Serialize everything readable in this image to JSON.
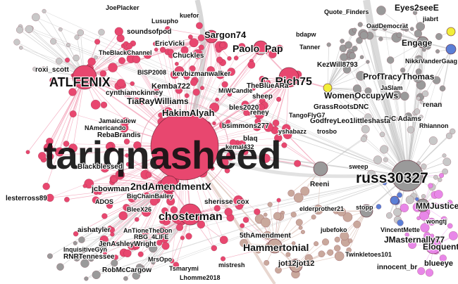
{
  "colors": {
    "pink": "#e8476f",
    "pink_light": "#f07b98",
    "gray": "#9a9a9a",
    "gray_light": "#c8c8c8",
    "tan": "#c9a89c",
    "blue": "#5b7fd6",
    "yellow": "#f2ee3a",
    "magenta": "#e887e8",
    "edge_pink": "#f29ab2",
    "edge_gray": "#c4c4c4",
    "edge_tan": "#d9bcb0",
    "edge_magenta": "#efb0ef"
  },
  "labels": [
    {
      "id": "tariqnasheed",
      "text": "tariqnasheed"
    },
    {
      "id": "russ30327",
      "text": "russ30327"
    },
    {
      "id": "atlfenix",
      "text": "ATLFENIX"
    },
    {
      "id": "crich75",
      "text": "C_Rich75"
    },
    {
      "id": "2ndamendment",
      "text": "2ndAmendmentX"
    },
    {
      "id": "paolo",
      "text": "Paolo_Pap"
    },
    {
      "id": "sargon",
      "text": "Sargon74"
    },
    {
      "id": "kemba",
      "text": "Kemba722"
    },
    {
      "id": "tiaray",
      "text": "TiaRayWilliams"
    },
    {
      "id": "hakim",
      "text": "HakimAlyah"
    },
    {
      "id": "bsimmons",
      "text": "bsimmons277"
    },
    {
      "id": "choster",
      "text": "chosterman"
    },
    {
      "id": "hammer",
      "text": "Hammertonial"
    },
    {
      "id": "jot12",
      "text": "jot12jot12"
    },
    {
      "id": "lesterross",
      "text": "lesterross89"
    },
    {
      "id": "jcbowman",
      "text": "jcbowman"
    },
    {
      "id": "sherisse",
      "text": "sherisse_cox"
    },
    {
      "id": "justice",
      "text": "MMJustice"
    },
    {
      "id": "loquent",
      "text": "Eloquent"
    },
    {
      "id": "blueeye",
      "text": "blueeye"
    },
    {
      "id": "womenocc",
      "text": "WomenOccupyWs"
    },
    {
      "id": "jmasternally",
      "text": "JMasternally77"
    },
    {
      "id": "eyes2see",
      "text": "Eyes2seeE"
    },
    {
      "id": "protracy",
      "text": "ProfTracyThomas"
    },
    {
      "id": "kevbiz",
      "text": "kevbizmanwalker"
    },
    {
      "id": "joeplacker",
      "text": "JoePlacker"
    },
    {
      "id": "soundsofpod",
      "text": "soundsofpod"
    },
    {
      "id": "blackchannel",
      "text": "TheBlackChannel"
    },
    {
      "id": "roxi",
      "text": "roxi_scott"
    },
    {
      "id": "ericvicki",
      "text": "EricVicki"
    },
    {
      "id": "chuckles",
      "text": "Chuckles"
    },
    {
      "id": "renan",
      "text": "renan"
    },
    {
      "id": "kezwill",
      "text": "KezWill8793"
    },
    {
      "id": "quotefinders",
      "text": "Quote_Finders"
    },
    {
      "id": "oad",
      "text": "OadDemocrat"
    },
    {
      "id": "engage",
      "text": "Engage"
    },
    {
      "id": "nikkivander",
      "text": "NikkiVanderGaag"
    },
    {
      "id": "jiaslam",
      "text": "JaSlam"
    },
    {
      "id": "cicadams",
      "text": "CiC Adams"
    },
    {
      "id": "rhiannon",
      "text": "Rhiannon"
    },
    {
      "id": "grassroots",
      "text": "GrassRootsDNC"
    },
    {
      "id": "godfrey",
      "text": "GodfreyLeo1littleshasta"
    },
    {
      "id": "yshabazz",
      "text": "yshabazz"
    },
    {
      "id": "trosbo",
      "text": "trosbo"
    },
    {
      "id": "kemal",
      "text": "kemal432"
    },
    {
      "id": "reeni",
      "text": "Reeni"
    },
    {
      "id": "jamaicadew",
      "text": "Jamaicadew"
    },
    {
      "id": "rebabrandis",
      "text": "RebaBrandis"
    },
    {
      "id": "namericando",
      "text": "NAmericando"
    },
    {
      "id": "blackblessed",
      "text": "Blackblessed"
    },
    {
      "id": "cynthia",
      "text": "cynthiamckinney"
    },
    {
      "id": "ados",
      "text": "ADOS"
    },
    {
      "id": "bigchain",
      "text": "BigChainBailey"
    },
    {
      "id": "aishatyler",
      "text": "aishatyler"
    },
    {
      "id": "jenashley",
      "text": "JenAshleyWright"
    },
    {
      "id": "rnrtenn",
      "text": "RNRTennessee"
    },
    {
      "id": "robmc",
      "text": "RobMcCargow"
    },
    {
      "id": "mistresh",
      "text": "mistresh"
    },
    {
      "id": "5thamend",
      "text": "5thAmendment"
    },
    {
      "id": "elderprother",
      "text": "elderprother21"
    },
    {
      "id": "jubefoko",
      "text": "jubefoko"
    },
    {
      "id": "vincentm",
      "text": "VincentMette"
    },
    {
      "id": "twinkle",
      "text": "Twinkletoes101"
    },
    {
      "id": "wongtj",
      "text": "wongtj"
    },
    {
      "id": "innocent",
      "text": "innocent_br"
    },
    {
      "id": "lhomme",
      "text": "Lhomme2018"
    },
    {
      "id": "tsmarymi",
      "text": "Tsmarymi"
    },
    {
      "id": "inquisitive",
      "text": "InquisitiveGyn"
    },
    {
      "id": "antoine",
      "text": "AnTioneTheDon"
    },
    {
      "id": "rbg",
      "text": "RBG_4LIFE"
    },
    {
      "id": "stopp",
      "text": "stopp"
    },
    {
      "id": "mrsopo",
      "text": "MrsOpo"
    },
    {
      "id": "blee",
      "text": "BleeX26"
    },
    {
      "id": "bisp",
      "text": "BISP2008"
    },
    {
      "id": "kuefor",
      "text": "kuefor"
    },
    {
      "id": "lusupho",
      "text": "Lusupho"
    },
    {
      "id": "bdapw",
      "text": "bdapw"
    },
    {
      "id": "tanner",
      "text": "Tanner"
    },
    {
      "id": "rehey",
      "text": "rehey"
    },
    {
      "id": "tangofly",
      "text": "TangoFlyG7"
    },
    {
      "id": "blaq",
      "text": "blaq"
    },
    {
      "id": "miw",
      "text": "MiWCandle"
    },
    {
      "id": "sheep",
      "text": "sheep"
    },
    {
      "id": "bles2020",
      "text": "bles2020"
    },
    {
      "id": "thebluera",
      "text": "TheBlueARa"
    },
    {
      "id": "eyes2",
      "text": "jiabrt"
    },
    {
      "id": "sweep",
      "text": "sweep"
    }
  ]
}
